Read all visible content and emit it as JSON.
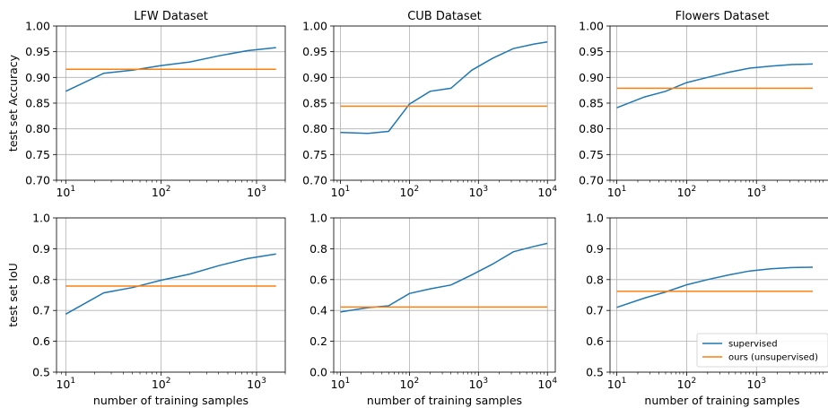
{
  "chart_data": [
    {
      "type": "line",
      "title": "LFW Dataset",
      "ylabel": "test set Accuracy",
      "xlabel": "",
      "xscale": "log",
      "xlim": [
        8,
        2000
      ],
      "ylim": [
        0.7,
        1.0
      ],
      "yticks": [
        "0.70",
        "0.75",
        "0.80",
        "0.85",
        "0.90",
        "0.95",
        "1.00"
      ],
      "xticks": [
        10,
        100,
        1000
      ],
      "grid": true,
      "series": [
        {
          "name": "supervised",
          "color": "#1f77b4",
          "x": [
            10,
            25,
            50,
            100,
            200,
            400,
            800,
            1600
          ],
          "y": [
            0.873,
            0.908,
            0.914,
            0.923,
            0.93,
            0.942,
            0.952,
            0.958
          ]
        },
        {
          "name": "ours (unsupervised)",
          "color": "#ff7f0e",
          "x": [
            10,
            1600
          ],
          "y": [
            0.916,
            0.916
          ]
        }
      ]
    },
    {
      "type": "line",
      "title": "CUB Dataset",
      "ylabel": "",
      "xlabel": "",
      "xscale": "log",
      "xlim": [
        8,
        13000
      ],
      "ylim": [
        0.7,
        1.0
      ],
      "yticks": [
        "0.70",
        "0.75",
        "0.80",
        "0.85",
        "0.90",
        "0.95",
        "1.00"
      ],
      "xticks": [
        10,
        100,
        1000,
        10000
      ],
      "grid": true,
      "series": [
        {
          "name": "supervised",
          "color": "#1f77b4",
          "x": [
            10,
            25,
            50,
            100,
            200,
            400,
            800,
            1600,
            3200,
            6400,
            10000
          ],
          "y": [
            0.793,
            0.791,
            0.795,
            0.848,
            0.873,
            0.879,
            0.914,
            0.937,
            0.956,
            0.965,
            0.969
          ]
        },
        {
          "name": "ours (unsupervised)",
          "color": "#ff7f0e",
          "x": [
            10,
            10000
          ],
          "y": [
            0.844,
            0.844
          ]
        }
      ]
    },
    {
      "type": "line",
      "title": "Flowers Dataset",
      "ylabel": "",
      "xlabel": "",
      "xscale": "log",
      "xlim": [
        8,
        13000
      ],
      "ylim": [
        0.7,
        1.0
      ],
      "yticks": [
        "0.70",
        "0.75",
        "0.80",
        "0.85",
        "0.90",
        "0.95",
        "1.00"
      ],
      "xticks": [
        10,
        100,
        1000
      ],
      "grid": true,
      "series": [
        {
          "name": "supervised",
          "color": "#1f77b4",
          "x": [
            10,
            25,
            50,
            100,
            200,
            400,
            800,
            1600,
            3200,
            6400
          ],
          "y": [
            0.841,
            0.862,
            0.873,
            0.89,
            0.9,
            0.91,
            0.918,
            0.922,
            0.925,
            0.926
          ]
        },
        {
          "name": "ours (unsupervised)",
          "color": "#ff7f0e",
          "x": [
            10,
            6400
          ],
          "y": [
            0.879,
            0.879
          ]
        }
      ]
    },
    {
      "type": "line",
      "title": "",
      "ylabel": "test set IoU",
      "xlabel": "number of training samples",
      "xscale": "log",
      "xlim": [
        8,
        2000
      ],
      "ylim": [
        0.5,
        1.0
      ],
      "yticks": [
        "0.5",
        "0.6",
        "0.7",
        "0.8",
        "0.9",
        "1.0"
      ],
      "xticks": [
        10,
        100,
        1000
      ],
      "grid": true,
      "series": [
        {
          "name": "supervised",
          "color": "#1f77b4",
          "x": [
            10,
            25,
            50,
            100,
            200,
            400,
            800,
            1600
          ],
          "y": [
            0.688,
            0.757,
            0.774,
            0.798,
            0.818,
            0.845,
            0.868,
            0.883
          ]
        },
        {
          "name": "ours (unsupervised)",
          "color": "#ff7f0e",
          "x": [
            10,
            1600
          ],
          "y": [
            0.779,
            0.779
          ]
        }
      ]
    },
    {
      "type": "line",
      "title": "",
      "ylabel": "",
      "xlabel": "number of training samples",
      "xscale": "log",
      "xlim": [
        8,
        13000
      ],
      "ylim": [
        0.0,
        1.0
      ],
      "yticks": [
        "0.0",
        "0.2",
        "0.4",
        "0.6",
        "0.8",
        "1.0"
      ],
      "xticks": [
        10,
        100,
        1000,
        10000
      ],
      "grid": true,
      "series": [
        {
          "name": "supervised",
          "color": "#1f77b4",
          "x": [
            10,
            25,
            50,
            100,
            200,
            400,
            800,
            1600,
            3200,
            6400,
            10000
          ],
          "y": [
            0.39,
            0.418,
            0.43,
            0.51,
            0.54,
            0.565,
            0.63,
            0.7,
            0.78,
            0.815,
            0.835
          ]
        },
        {
          "name": "ours (unsupervised)",
          "color": "#ff7f0e",
          "x": [
            10,
            10000
          ],
          "y": [
            0.422,
            0.422
          ]
        }
      ]
    },
    {
      "type": "line",
      "title": "",
      "ylabel": "",
      "xlabel": "number of training samples",
      "xscale": "log",
      "xlim": [
        8,
        13000
      ],
      "ylim": [
        0.5,
        1.0
      ],
      "yticks": [
        "0.5",
        "0.6",
        "0.7",
        "0.8",
        "0.9",
        "1.0"
      ],
      "xticks": [
        10,
        100,
        1000
      ],
      "grid": true,
      "legend": {
        "placement": "lower-right",
        "entries": [
          "supervised",
          "ours (unsupervised)"
        ]
      },
      "series": [
        {
          "name": "supervised",
          "color": "#1f77b4",
          "x": [
            10,
            25,
            50,
            100,
            200,
            400,
            800,
            1600,
            3200,
            6400
          ],
          "y": [
            0.71,
            0.74,
            0.76,
            0.783,
            0.8,
            0.815,
            0.828,
            0.835,
            0.839,
            0.84
          ]
        },
        {
          "name": "ours (unsupervised)",
          "color": "#ff7f0e",
          "x": [
            10,
            6400
          ],
          "y": [
            0.762,
            0.762
          ]
        }
      ]
    }
  ]
}
